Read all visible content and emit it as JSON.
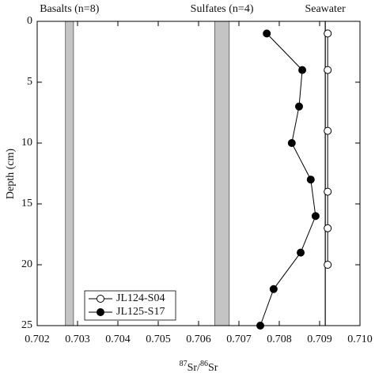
{
  "chart_data": {
    "type": "line",
    "xlabel": [
      {
        "text": "87",
        "sup": true
      },
      {
        "text": "Sr/"
      },
      {
        "text": "86",
        "sup": true
      },
      {
        "text": "Sr"
      }
    ],
    "ylabel": "Depth (cm)",
    "xlim": [
      0.702,
      0.71
    ],
    "xticks": [
      0.702,
      0.703,
      0.704,
      0.705,
      0.706,
      0.707,
      0.708,
      0.709,
      {
        "value": 0.71,
        "label": "0.710"
      }
    ],
    "ylim": [
      0,
      25
    ],
    "yticks": [
      0,
      5,
      10,
      15,
      20,
      25
    ],
    "y_inverted": true,
    "legend": "lower left",
    "bands": [
      {
        "label": "Basalts (n=8)",
        "x": [
          0.7027,
          0.7029
        ],
        "color": "#c4c4c4"
      },
      {
        "label": "Sulfates (n=4)",
        "x": [
          0.7064,
          0.70676
        ],
        "color": "#c4c4c4"
      }
    ],
    "reference_lines": [
      {
        "label": "Seawater",
        "x": 0.70914,
        "color": "#000000"
      }
    ],
    "series": [
      {
        "name": "JL124-S04",
        "color": "#000000",
        "filled": false,
        "x": [
          0.7092,
          0.7092,
          0.7092,
          0.7092,
          0.7092,
          0.7092
        ],
        "y": [
          1,
          4,
          9,
          14,
          17,
          20
        ]
      },
      {
        "name": "JL125-S17",
        "color": "#000000",
        "filled": true,
        "x": [
          0.70769,
          0.70857,
          0.70849,
          0.70831,
          0.70878,
          0.7089,
          0.70853,
          0.70786,
          0.70753
        ],
        "y": [
          1,
          4,
          7,
          10,
          13,
          16,
          19,
          22,
          25
        ]
      }
    ]
  }
}
